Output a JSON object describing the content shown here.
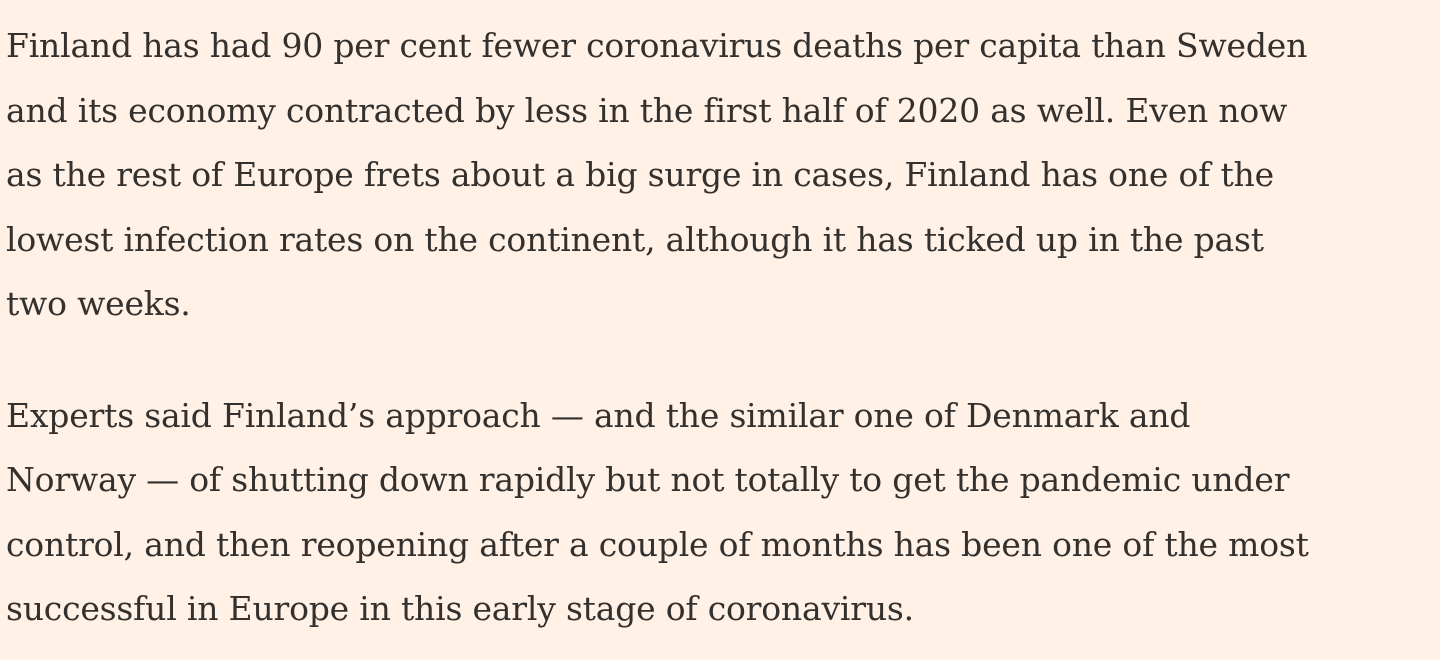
{
  "article": {
    "paragraphs": [
      {
        "text": "Finland has had 90 per cent fewer coronavirus deaths per capita than Sweden\nand its economy contracted by less in the first half of 2020 as well. Even now\nas the rest of Europe frets about a big surge in cases, Finland has one of the\nlowest infection rates on the continent, although it has ticked up in the past\ntwo weeks."
      },
      {
        "text": "Experts said Finland’s approach — and the similar one of Denmark and\nNorway — of shutting down rapidly but not totally to get the pandemic under\ncontrol, and then reopening after a couple of months has been one of the most\nsuccessful in Europe in this early stage of coronavirus."
      }
    ]
  },
  "colors": {
    "background": "#FFF1E5",
    "text": "#33302E"
  }
}
